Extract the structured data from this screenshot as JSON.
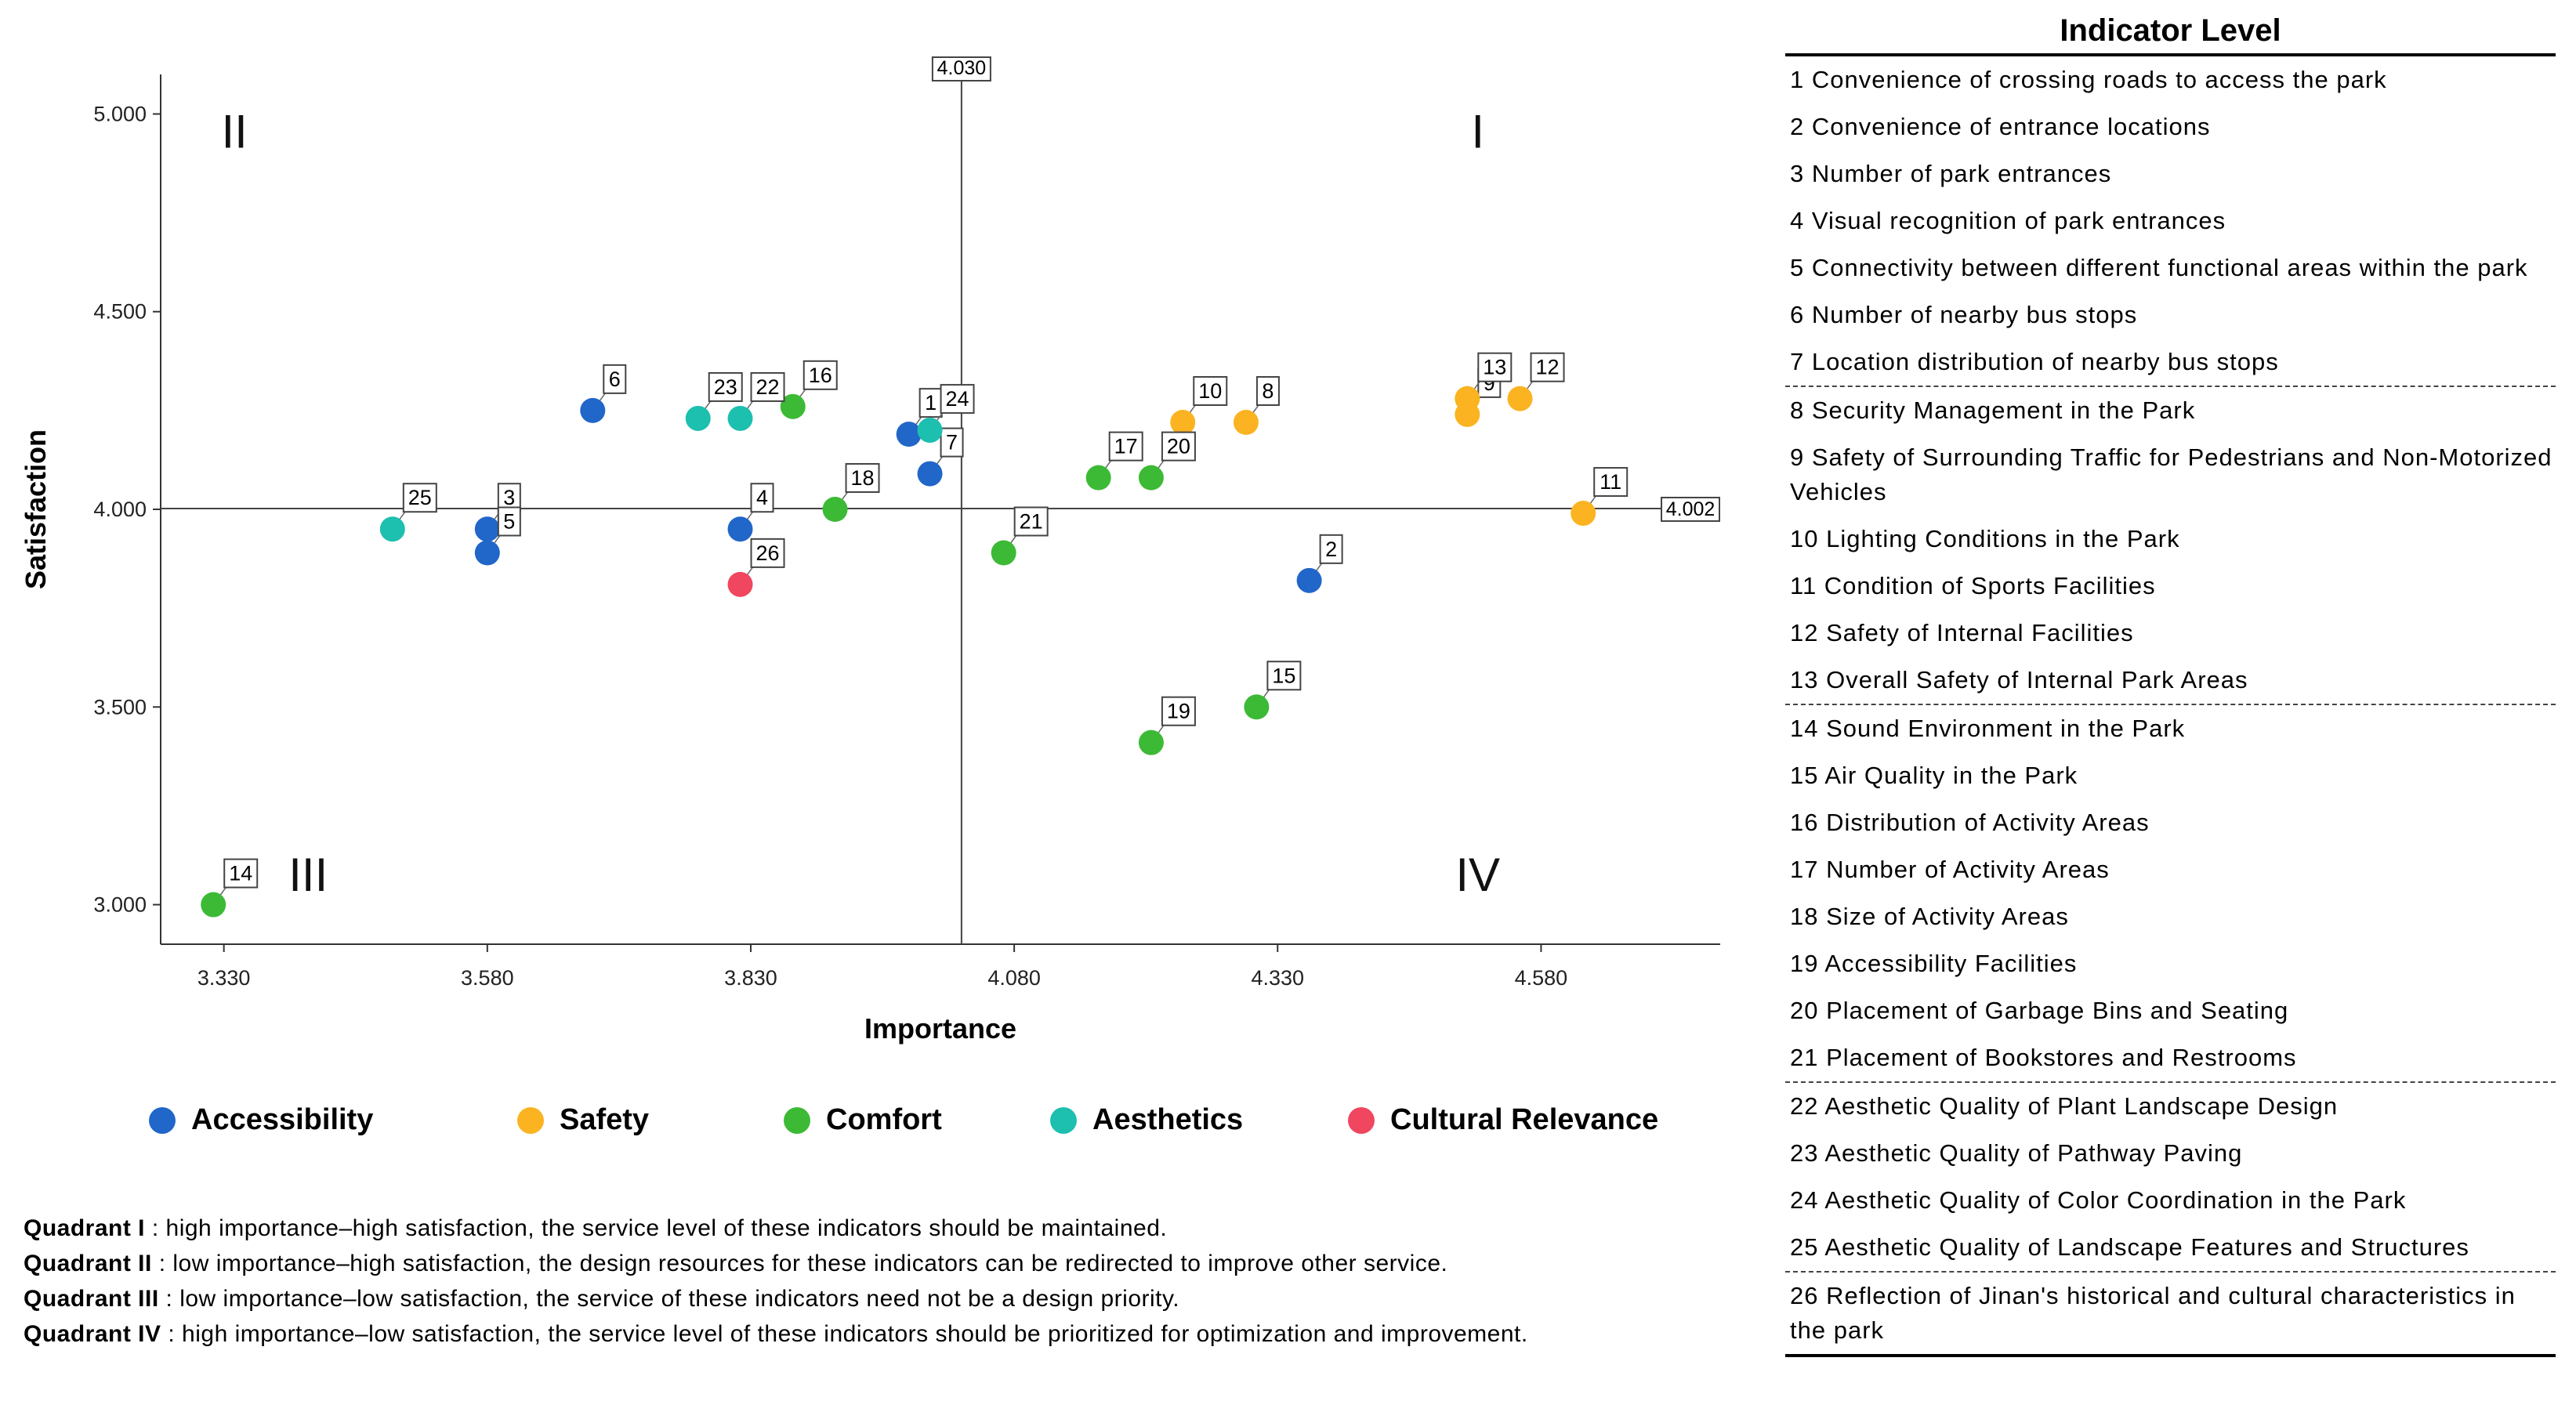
{
  "chart_data": {
    "type": "scatter",
    "title": "",
    "xlabel": "Importance",
    "ylabel": "Satisfaction",
    "xlim": [
      3.27,
      4.75
    ],
    "ylim": [
      2.9,
      5.1
    ],
    "x_ticks": [
      {
        "value": 3.33,
        "label": "3.330"
      },
      {
        "value": 3.58,
        "label": "3.580"
      },
      {
        "value": 3.83,
        "label": "3.830"
      },
      {
        "value": 4.08,
        "label": "4.080"
      },
      {
        "value": 4.33,
        "label": "4.330"
      },
      {
        "value": 4.58,
        "label": "4.580"
      }
    ],
    "y_ticks": [
      {
        "value": 3.0,
        "label": "3.000"
      },
      {
        "value": 3.5,
        "label": "3.500"
      },
      {
        "value": 4.0,
        "label": "4.000"
      },
      {
        "value": 4.5,
        "label": "4.500"
      },
      {
        "value": 5.0,
        "label": "5.000"
      }
    ],
    "reference_lines": {
      "x": {
        "value": 4.03,
        "label": "4.030"
      },
      "y": {
        "value": 4.002,
        "label": "4.002"
      }
    },
    "quadrant_labels": [
      {
        "id": "I",
        "x": 4.52,
        "y": 4.95
      },
      {
        "id": "II",
        "x": 3.34,
        "y": 4.95
      },
      {
        "id": "III",
        "x": 3.41,
        "y": 3.07
      },
      {
        "id": "IV",
        "x": 4.52,
        "y": 3.07
      }
    ],
    "categories": [
      {
        "name": "Accessibility",
        "color": "#2166c9"
      },
      {
        "name": "Safety",
        "color": "#fbb321"
      },
      {
        "name": "Comfort",
        "color": "#3cba35"
      },
      {
        "name": "Aesthetics",
        "color": "#1dbfaf"
      },
      {
        "name": "Cultural Relevance",
        "color": "#f0465f"
      }
    ],
    "points": [
      {
        "id": "1",
        "x": 3.98,
        "y": 4.19,
        "category": "Accessibility"
      },
      {
        "id": "2",
        "x": 4.36,
        "y": 3.82,
        "category": "Accessibility"
      },
      {
        "id": "3",
        "x": 3.58,
        "y": 3.95,
        "category": "Accessibility"
      },
      {
        "id": "4",
        "x": 3.82,
        "y": 3.95,
        "category": "Accessibility"
      },
      {
        "id": "5",
        "x": 3.58,
        "y": 3.89,
        "category": "Accessibility"
      },
      {
        "id": "6",
        "x": 3.68,
        "y": 4.25,
        "category": "Accessibility"
      },
      {
        "id": "7",
        "x": 4.0,
        "y": 4.09,
        "category": "Accessibility"
      },
      {
        "id": "8",
        "x": 4.3,
        "y": 4.22,
        "category": "Safety"
      },
      {
        "id": "9",
        "x": 4.51,
        "y": 4.24,
        "category": "Safety"
      },
      {
        "id": "10",
        "x": 4.24,
        "y": 4.22,
        "category": "Safety"
      },
      {
        "id": "11",
        "x": 4.62,
        "y": 3.99,
        "category": "Safety"
      },
      {
        "id": "12",
        "x": 4.56,
        "y": 4.28,
        "category": "Safety"
      },
      {
        "id": "13",
        "x": 4.51,
        "y": 4.28,
        "category": "Safety"
      },
      {
        "id": "14",
        "x": 3.32,
        "y": 3.0,
        "category": "Comfort"
      },
      {
        "id": "15",
        "x": 4.31,
        "y": 3.5,
        "category": "Comfort"
      },
      {
        "id": "16",
        "x": 3.87,
        "y": 4.26,
        "category": "Comfort"
      },
      {
        "id": "17",
        "x": 4.16,
        "y": 4.08,
        "category": "Comfort"
      },
      {
        "id": "18",
        "x": 3.91,
        "y": 4.0,
        "category": "Comfort"
      },
      {
        "id": "19",
        "x": 4.21,
        "y": 3.41,
        "category": "Comfort"
      },
      {
        "id": "20",
        "x": 4.21,
        "y": 4.08,
        "category": "Comfort"
      },
      {
        "id": "21",
        "x": 4.07,
        "y": 3.89,
        "category": "Comfort"
      },
      {
        "id": "22",
        "x": 3.82,
        "y": 4.23,
        "category": "Aesthetics"
      },
      {
        "id": "23",
        "x": 3.78,
        "y": 4.23,
        "category": "Aesthetics"
      },
      {
        "id": "24",
        "x": 4.0,
        "y": 4.2,
        "category": "Aesthetics"
      },
      {
        "id": "25",
        "x": 3.49,
        "y": 3.95,
        "category": "Aesthetics"
      },
      {
        "id": "26",
        "x": 3.82,
        "y": 3.81,
        "category": "Cultural Relevance"
      }
    ]
  },
  "legend": [
    {
      "label": "Accessibility",
      "color": "#2166c9"
    },
    {
      "label": "Safety",
      "color": "#fbb321"
    },
    {
      "label": "Comfort",
      "color": "#3cba35"
    },
    {
      "label": "Aesthetics",
      "color": "#1dbfaf"
    },
    {
      "label": "Cultural Relevance",
      "color": "#f0465f"
    }
  ],
  "quadrant_notes": [
    {
      "term": "Quadrant I",
      "text": " : high importance–high satisfaction, the service level of these indicators should be maintained."
    },
    {
      "term": "Quadrant II",
      "text": " : low importance–high satisfaction, the design resources for these indicators can be redirected to improve other service."
    },
    {
      "term": "Quadrant III",
      "text": " : low importance–low satisfaction, the service of these indicators need not be a design priority."
    },
    {
      "term": "Quadrant IV",
      "text": " : high importance–low satisfaction, the service level of these indicators should be prioritized for optimization and improvement."
    }
  ],
  "indicator_panel": {
    "title": "Indicator Level",
    "items": [
      "1 Convenience of crossing roads to access the park",
      "2 Convenience of entrance locations",
      "3 Number of park entrances",
      "4 Visual recognition of park entrances",
      "5 Connectivity between different functional areas within the park",
      "6 Number of nearby bus stops",
      "7 Location distribution of nearby bus stops",
      "8 Security Management in the Park",
      "9 Safety of Surrounding Traffic for Pedestrians and Non-Motorized Vehicles",
      "10 Lighting Conditions in the Park",
      "11 Condition of Sports Facilities",
      "12 Safety of Internal Facilities",
      "13 Overall Safety of Internal Park Areas",
      "14 Sound Environment in the Park",
      "15 Air Quality in the Park",
      "16 Distribution of Activity Areas",
      "17 Number of Activity Areas",
      "18 Size of Activity Areas",
      "19 Accessibility Facilities",
      "20 Placement of Garbage Bins and Seating",
      "21 Placement of Bookstores and Restrooms",
      "22 Aesthetic Quality of Plant Landscape Design",
      "23 Aesthetic Quality of Pathway Paving",
      "24 Aesthetic Quality of Color Coordination in the Park",
      "25 Aesthetic Quality of Landscape Features and Structures",
      "26 Reflection of Jinan's historical and cultural characteristics in the park"
    ],
    "group_ends": [
      7,
      13,
      21,
      25
    ]
  }
}
